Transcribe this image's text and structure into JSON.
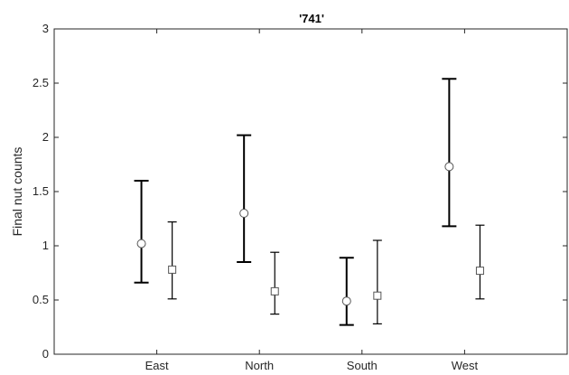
{
  "chart_data": {
    "type": "errorbar",
    "title": "'741'",
    "xlabel": "",
    "ylabel": "Final nut counts",
    "categories": [
      "East",
      "North",
      "South",
      "West"
    ],
    "xlim": [
      0,
      5
    ],
    "ylim": [
      0,
      3
    ],
    "yticks": [
      "0",
      "0.5",
      "1",
      "1.5",
      "2",
      "2.5",
      "3"
    ],
    "grid": false,
    "legend": "none",
    "series": [
      {
        "marker": "circle",
        "line_weight": "thick",
        "color": "#000000",
        "values": [
          1.02,
          1.3,
          0.49,
          1.73
        ],
        "lower": [
          0.66,
          0.85,
          0.27,
          1.18
        ],
        "upper": [
          1.6,
          2.02,
          0.89,
          2.54
        ]
      },
      {
        "marker": "square",
        "line_weight": "thin",
        "color": "#000000",
        "values": [
          0.78,
          0.58,
          0.54,
          0.77
        ],
        "lower": [
          0.51,
          0.37,
          0.28,
          0.51
        ],
        "upper": [
          1.22,
          0.94,
          1.05,
          1.19
        ]
      }
    ]
  }
}
